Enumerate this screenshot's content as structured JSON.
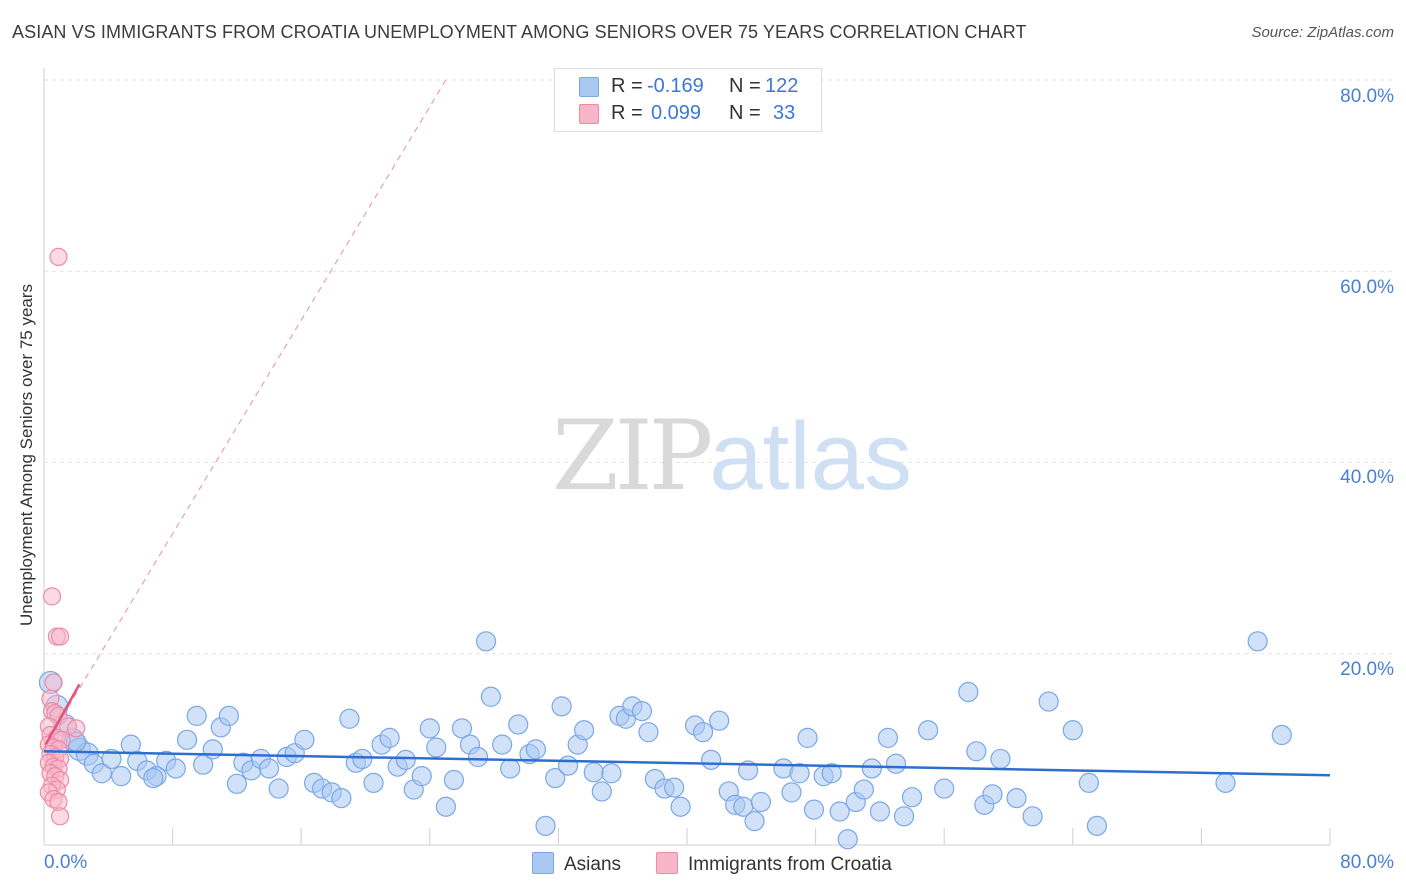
{
  "title": "ASIAN VS IMMIGRANTS FROM CROATIA UNEMPLOYMENT AMONG SENIORS OVER 75 YEARS CORRELATION CHART",
  "source": "Source: ZipAtlas.com",
  "watermark": {
    "zip": "ZIP",
    "atlas": "atlas"
  },
  "legend": {
    "series1": {
      "r_label": "R =",
      "r_value": "-0.169",
      "n_label": "N =",
      "n_value": "122"
    },
    "series2": {
      "r_label": "R =",
      "r_value": "0.099",
      "n_label": "N =",
      "n_value": "33"
    }
  },
  "bottom_legend": {
    "series1": "Asians",
    "series2": "Immigrants from Croatia"
  },
  "colors": {
    "blue_fill": "#a9c8f2",
    "blue_stroke": "#7aa8e6",
    "blue_line": "#2d6fd1",
    "pink_fill": "#f7b6c8",
    "pink_stroke": "#ee8aa8",
    "pink_line": "#e0557f",
    "tick_text": "#4a7fd4",
    "grid": "#e2e2e2"
  },
  "chart_data": {
    "type": "scatter",
    "title": "ASIAN VS IMMIGRANTS FROM CROATIA UNEMPLOYMENT AMONG SENIORS OVER 75 YEARS CORRELATION CHART",
    "xlabel": "",
    "ylabel": "Unemployment Among Seniors over 75 years",
    "xlim": [
      0,
      80
    ],
    "ylim": [
      0,
      80
    ],
    "y_ticks": [
      "20.0%",
      "40.0%",
      "60.0%",
      "80.0%"
    ],
    "x_ticks": [
      "0.0%",
      "80.0%"
    ],
    "grid": true,
    "series": [
      {
        "name": "Asians",
        "r": -0.169,
        "n": 122,
        "trend": {
          "x": [
            0,
            80
          ],
          "y": [
            9.8,
            7.3
          ]
        },
        "points": [
          [
            0.4,
            17.0
          ],
          [
            0.8,
            14.5
          ],
          [
            1.3,
            12.5
          ],
          [
            1.8,
            11.0
          ],
          [
            2.2,
            10.0
          ],
          [
            2.7,
            9.5
          ],
          [
            3.1,
            8.5
          ],
          [
            3.6,
            7.5
          ],
          [
            4.2,
            9.0
          ],
          [
            4.8,
            7.2
          ],
          [
            5.4,
            10.5
          ],
          [
            5.8,
            8.8
          ],
          [
            6.4,
            7.8
          ],
          [
            7.0,
            7.2
          ],
          [
            7.6,
            8.8
          ],
          [
            8.2,
            8.0
          ],
          [
            8.9,
            11.0
          ],
          [
            9.5,
            13.5
          ],
          [
            9.9,
            8.4
          ],
          [
            10.5,
            10.0
          ],
          [
            11.0,
            12.3
          ],
          [
            11.5,
            13.5
          ],
          [
            12.0,
            6.4
          ],
          [
            12.4,
            8.6
          ],
          [
            12.9,
            7.8
          ],
          [
            13.5,
            9.0
          ],
          [
            14.0,
            8.0
          ],
          [
            14.6,
            5.9
          ],
          [
            15.1,
            9.2
          ],
          [
            15.6,
            9.6
          ],
          [
            16.2,
            11.0
          ],
          [
            16.8,
            6.5
          ],
          [
            17.3,
            5.9
          ],
          [
            17.9,
            5.5
          ],
          [
            18.5,
            4.9
          ],
          [
            19.0,
            13.2
          ],
          [
            19.4,
            8.6
          ],
          [
            19.8,
            9.0
          ],
          [
            20.5,
            6.5
          ],
          [
            21.0,
            10.5
          ],
          [
            21.5,
            11.2
          ],
          [
            22.0,
            8.2
          ],
          [
            22.5,
            8.9
          ],
          [
            23.0,
            5.8
          ],
          [
            23.5,
            7.2
          ],
          [
            24.0,
            12.2
          ],
          [
            24.4,
            10.2
          ],
          [
            25.0,
            4.0
          ],
          [
            25.5,
            6.8
          ],
          [
            26.0,
            12.2
          ],
          [
            26.5,
            10.5
          ],
          [
            27.0,
            9.2
          ],
          [
            27.5,
            21.3
          ],
          [
            27.8,
            15.5
          ],
          [
            28.5,
            10.5
          ],
          [
            29.0,
            8.0
          ],
          [
            29.5,
            12.6
          ],
          [
            30.2,
            9.5
          ],
          [
            30.6,
            10.0
          ],
          [
            31.2,
            2.0
          ],
          [
            31.8,
            7.0
          ],
          [
            32.2,
            14.5
          ],
          [
            32.6,
            8.3
          ],
          [
            33.2,
            10.5
          ],
          [
            33.6,
            12.0
          ],
          [
            34.2,
            7.6
          ],
          [
            34.7,
            5.6
          ],
          [
            35.3,
            7.5
          ],
          [
            35.8,
            13.5
          ],
          [
            36.2,
            13.2
          ],
          [
            36.6,
            14.5
          ],
          [
            37.2,
            14.0
          ],
          [
            37.6,
            11.8
          ],
          [
            38.0,
            6.9
          ],
          [
            38.6,
            5.9
          ],
          [
            39.2,
            6.0
          ],
          [
            39.6,
            4.0
          ],
          [
            40.5,
            12.5
          ],
          [
            41.0,
            11.8
          ],
          [
            41.5,
            8.9
          ],
          [
            42.0,
            13.0
          ],
          [
            42.6,
            5.6
          ],
          [
            43.0,
            4.2
          ],
          [
            43.5,
            4.0
          ],
          [
            43.8,
            7.8
          ],
          [
            44.2,
            2.5
          ],
          [
            44.6,
            4.5
          ],
          [
            46.0,
            8.0
          ],
          [
            46.5,
            5.5
          ],
          [
            47.0,
            7.5
          ],
          [
            47.5,
            11.2
          ],
          [
            47.9,
            3.7
          ],
          [
            48.5,
            7.2
          ],
          [
            49.0,
            7.5
          ],
          [
            49.5,
            3.5
          ],
          [
            50.0,
            0.6
          ],
          [
            50.5,
            4.5
          ],
          [
            51.0,
            5.8
          ],
          [
            51.5,
            8.0
          ],
          [
            52.0,
            3.5
          ],
          [
            52.5,
            11.2
          ],
          [
            53.0,
            8.5
          ],
          [
            53.5,
            3.0
          ],
          [
            54.0,
            5.0
          ],
          [
            55.0,
            12.0
          ],
          [
            56.0,
            5.9
          ],
          [
            57.5,
            16.0
          ],
          [
            58.0,
            9.8
          ],
          [
            58.5,
            4.2
          ],
          [
            59.0,
            5.3
          ],
          [
            59.5,
            9.0
          ],
          [
            60.5,
            4.9
          ],
          [
            61.5,
            3.0
          ],
          [
            62.5,
            15.0
          ],
          [
            64.0,
            12.0
          ],
          [
            65.0,
            6.5
          ],
          [
            65.5,
            2.0
          ],
          [
            73.5,
            6.5
          ],
          [
            75.5,
            21.3
          ],
          [
            77.0,
            11.5
          ],
          [
            2.0,
            10.8
          ],
          [
            6.8,
            7.0
          ]
        ]
      },
      {
        "name": "Immigrants from Croatia",
        "r": 0.099,
        "n": 33,
        "trend": {
          "x": [
            0.1,
            2.2
          ],
          "y": [
            10.5,
            16.8
          ]
        },
        "trend_extended": {
          "x": [
            0.1,
            25.0
          ],
          "y": [
            10.5,
            80.0
          ]
        },
        "points": [
          [
            0.9,
            61.5
          ],
          [
            0.5,
            26.0
          ],
          [
            0.8,
            21.8
          ],
          [
            1.0,
            21.8
          ],
          [
            0.6,
            17.0
          ],
          [
            0.4,
            15.3
          ],
          [
            0.5,
            14.0
          ],
          [
            0.7,
            13.8
          ],
          [
            0.9,
            13.5
          ],
          [
            0.3,
            12.4
          ],
          [
            1.5,
            12.4
          ],
          [
            2.0,
            12.2
          ],
          [
            0.4,
            11.5
          ],
          [
            0.8,
            11.2
          ],
          [
            1.1,
            11.0
          ],
          [
            0.3,
            10.5
          ],
          [
            0.6,
            10.2
          ],
          [
            0.9,
            10.0
          ],
          [
            0.4,
            9.5
          ],
          [
            0.7,
            9.2
          ],
          [
            1.0,
            9.0
          ],
          [
            0.3,
            8.6
          ],
          [
            0.6,
            8.2
          ],
          [
            0.9,
            8.0
          ],
          [
            0.4,
            7.5
          ],
          [
            0.7,
            7.2
          ],
          [
            1.0,
            6.8
          ],
          [
            0.5,
            6.2
          ],
          [
            0.8,
            5.8
          ],
          [
            0.3,
            5.5
          ],
          [
            0.6,
            4.8
          ],
          [
            0.9,
            4.5
          ],
          [
            1.0,
            3.0
          ]
        ]
      }
    ]
  }
}
